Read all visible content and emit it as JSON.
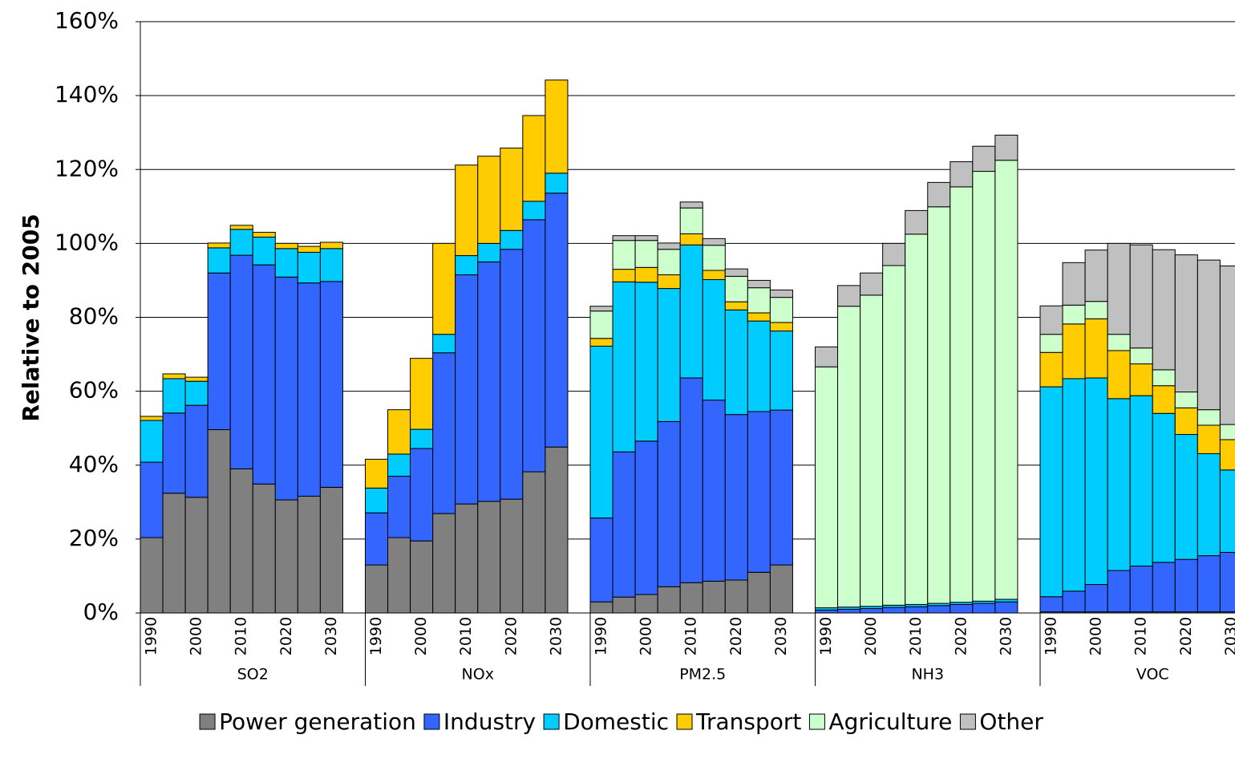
{
  "chart_data": {
    "type": "stacked_bar",
    "y_label": "Relative to 2005",
    "groups": [
      "SO2",
      "NOx",
      "PM2.5",
      "NH3",
      "VOC"
    ],
    "categories": [
      "1990",
      null,
      "2000",
      null,
      "2010",
      null,
      "2020",
      null,
      "2030",
      "1990",
      null,
      "2000",
      null,
      "2010",
      null,
      "2020",
      null,
      "2030",
      "1990",
      null,
      "2000",
      null,
      "2010",
      null,
      "2020",
      null,
      "2030",
      "1990",
      null,
      "2000",
      null,
      "2010",
      null,
      "2020",
      null,
      "2030",
      "1990",
      null,
      "2000",
      null,
      "2010",
      null,
      "2020",
      null,
      "2030"
    ],
    "ylim": [
      0,
      160
    ],
    "yticks": [
      {
        "value": 0,
        "label": "0%"
      },
      {
        "value": 20,
        "label": "20%"
      },
      {
        "value": 40,
        "label": "40%"
      },
      {
        "value": 60,
        "label": "60%"
      },
      {
        "value": 80,
        "label": "80%"
      },
      {
        "value": 100,
        "label": "100%"
      },
      {
        "value": 120,
        "label": "120%"
      },
      {
        "value": 140,
        "label": "140%"
      },
      {
        "value": 160,
        "label": "160%"
      }
    ],
    "grid": true,
    "legend": "bottom",
    "series": [
      {
        "name": "Power generation",
        "color": "#808080",
        "values": [
          20.4,
          32.4,
          31.3,
          49.6,
          39.0,
          34.9,
          30.6,
          31.6,
          34.0,
          13.0,
          20.4,
          19.5,
          26.9,
          29.5,
          30.2,
          30.8,
          38.2,
          44.9,
          3.0,
          4.3,
          5.0,
          7.1,
          8.2,
          8.6,
          8.9,
          11.0,
          13.0,
          0,
          0,
          0,
          0,
          0,
          0,
          0,
          0,
          0,
          0.3,
          0.3,
          0.3,
          0.3,
          0.3,
          0.3,
          0.3,
          0.3,
          0.3
        ]
      },
      {
        "name": "Industry",
        "color": "#3366ff",
        "values": [
          20.4,
          21.7,
          24.9,
          42.4,
          57.8,
          59.3,
          60.3,
          57.7,
          55.7,
          14.1,
          16.6,
          25.0,
          43.5,
          62.0,
          64.8,
          67.6,
          68.2,
          68.7,
          22.7,
          39.3,
          41.5,
          44.7,
          55.4,
          49.0,
          44.8,
          43.5,
          41.9,
          0.8,
          1.0,
          1.2,
          1.5,
          1.7,
          2.0,
          2.3,
          2.6,
          3.0,
          4.1,
          5.6,
          7.4,
          11.2,
          12.4,
          13.4,
          14.2,
          15.2,
          16.1
        ]
      },
      {
        "name": "Domestic",
        "color": "#00ccff",
        "values": [
          11.3,
          9.3,
          6.5,
          6.8,
          7.0,
          7.5,
          7.7,
          8.3,
          8.9,
          6.7,
          6.0,
          5.2,
          5.0,
          5.2,
          5.0,
          5.1,
          5.0,
          5.4,
          46.5,
          46.0,
          43.0,
          36.0,
          36.0,
          32.6,
          28.3,
          24.5,
          21.4,
          0.6,
          0.6,
          0.6,
          0.6,
          0.6,
          0.6,
          0.6,
          0.6,
          0.7,
          56.8,
          57.5,
          55.9,
          46.5,
          46.1,
          40.3,
          33.8,
          27.6,
          22.3
        ]
      },
      {
        "name": "Transport",
        "color": "#ffcc00",
        "values": [
          1.1,
          1.3,
          1.1,
          1.3,
          1.1,
          1.3,
          1.4,
          1.6,
          1.7,
          7.8,
          12.0,
          19.2,
          24.6,
          24.5,
          23.6,
          22.3,
          23.2,
          25.2,
          2.1,
          3.4,
          4.0,
          3.7,
          3.0,
          2.5,
          2.2,
          2.2,
          2.3,
          0,
          0,
          0,
          0,
          0,
          0,
          0,
          0,
          0,
          9.3,
          14.8,
          16.0,
          13.0,
          8.6,
          7.5,
          7.2,
          7.7,
          8.2
        ]
      },
      {
        "name": "Agriculture",
        "color": "#ccffcc",
        "values": [
          0,
          0,
          0,
          0,
          0,
          0,
          0,
          0,
          0,
          0,
          0,
          0,
          0,
          0,
          0,
          0,
          0,
          0,
          7.4,
          7.8,
          7.3,
          6.9,
          7.0,
          6.8,
          6.9,
          6.8,
          6.8,
          65.2,
          81.4,
          84.2,
          91.9,
          100.2,
          107.3,
          112.4,
          116.3,
          118.8,
          4.9,
          5.1,
          4.7,
          4.4,
          4.3,
          4.3,
          4.3,
          4.2,
          4.1
        ]
      },
      {
        "name": "Other",
        "color": "#c0c0c0",
        "values": [
          0,
          0,
          0,
          0,
          0,
          0,
          0,
          0,
          0,
          0,
          0,
          0,
          0,
          0,
          0,
          0,
          0,
          0,
          1.3,
          1.3,
          1.3,
          1.7,
          1.6,
          1.8,
          2.0,
          2.0,
          2.0,
          5.4,
          5.6,
          6.0,
          6.0,
          6.4,
          6.6,
          6.8,
          6.8,
          6.8,
          7.7,
          11.5,
          13.9,
          24.6,
          27.9,
          32.5,
          37.1,
          40.5,
          42.9
        ]
      }
    ]
  }
}
